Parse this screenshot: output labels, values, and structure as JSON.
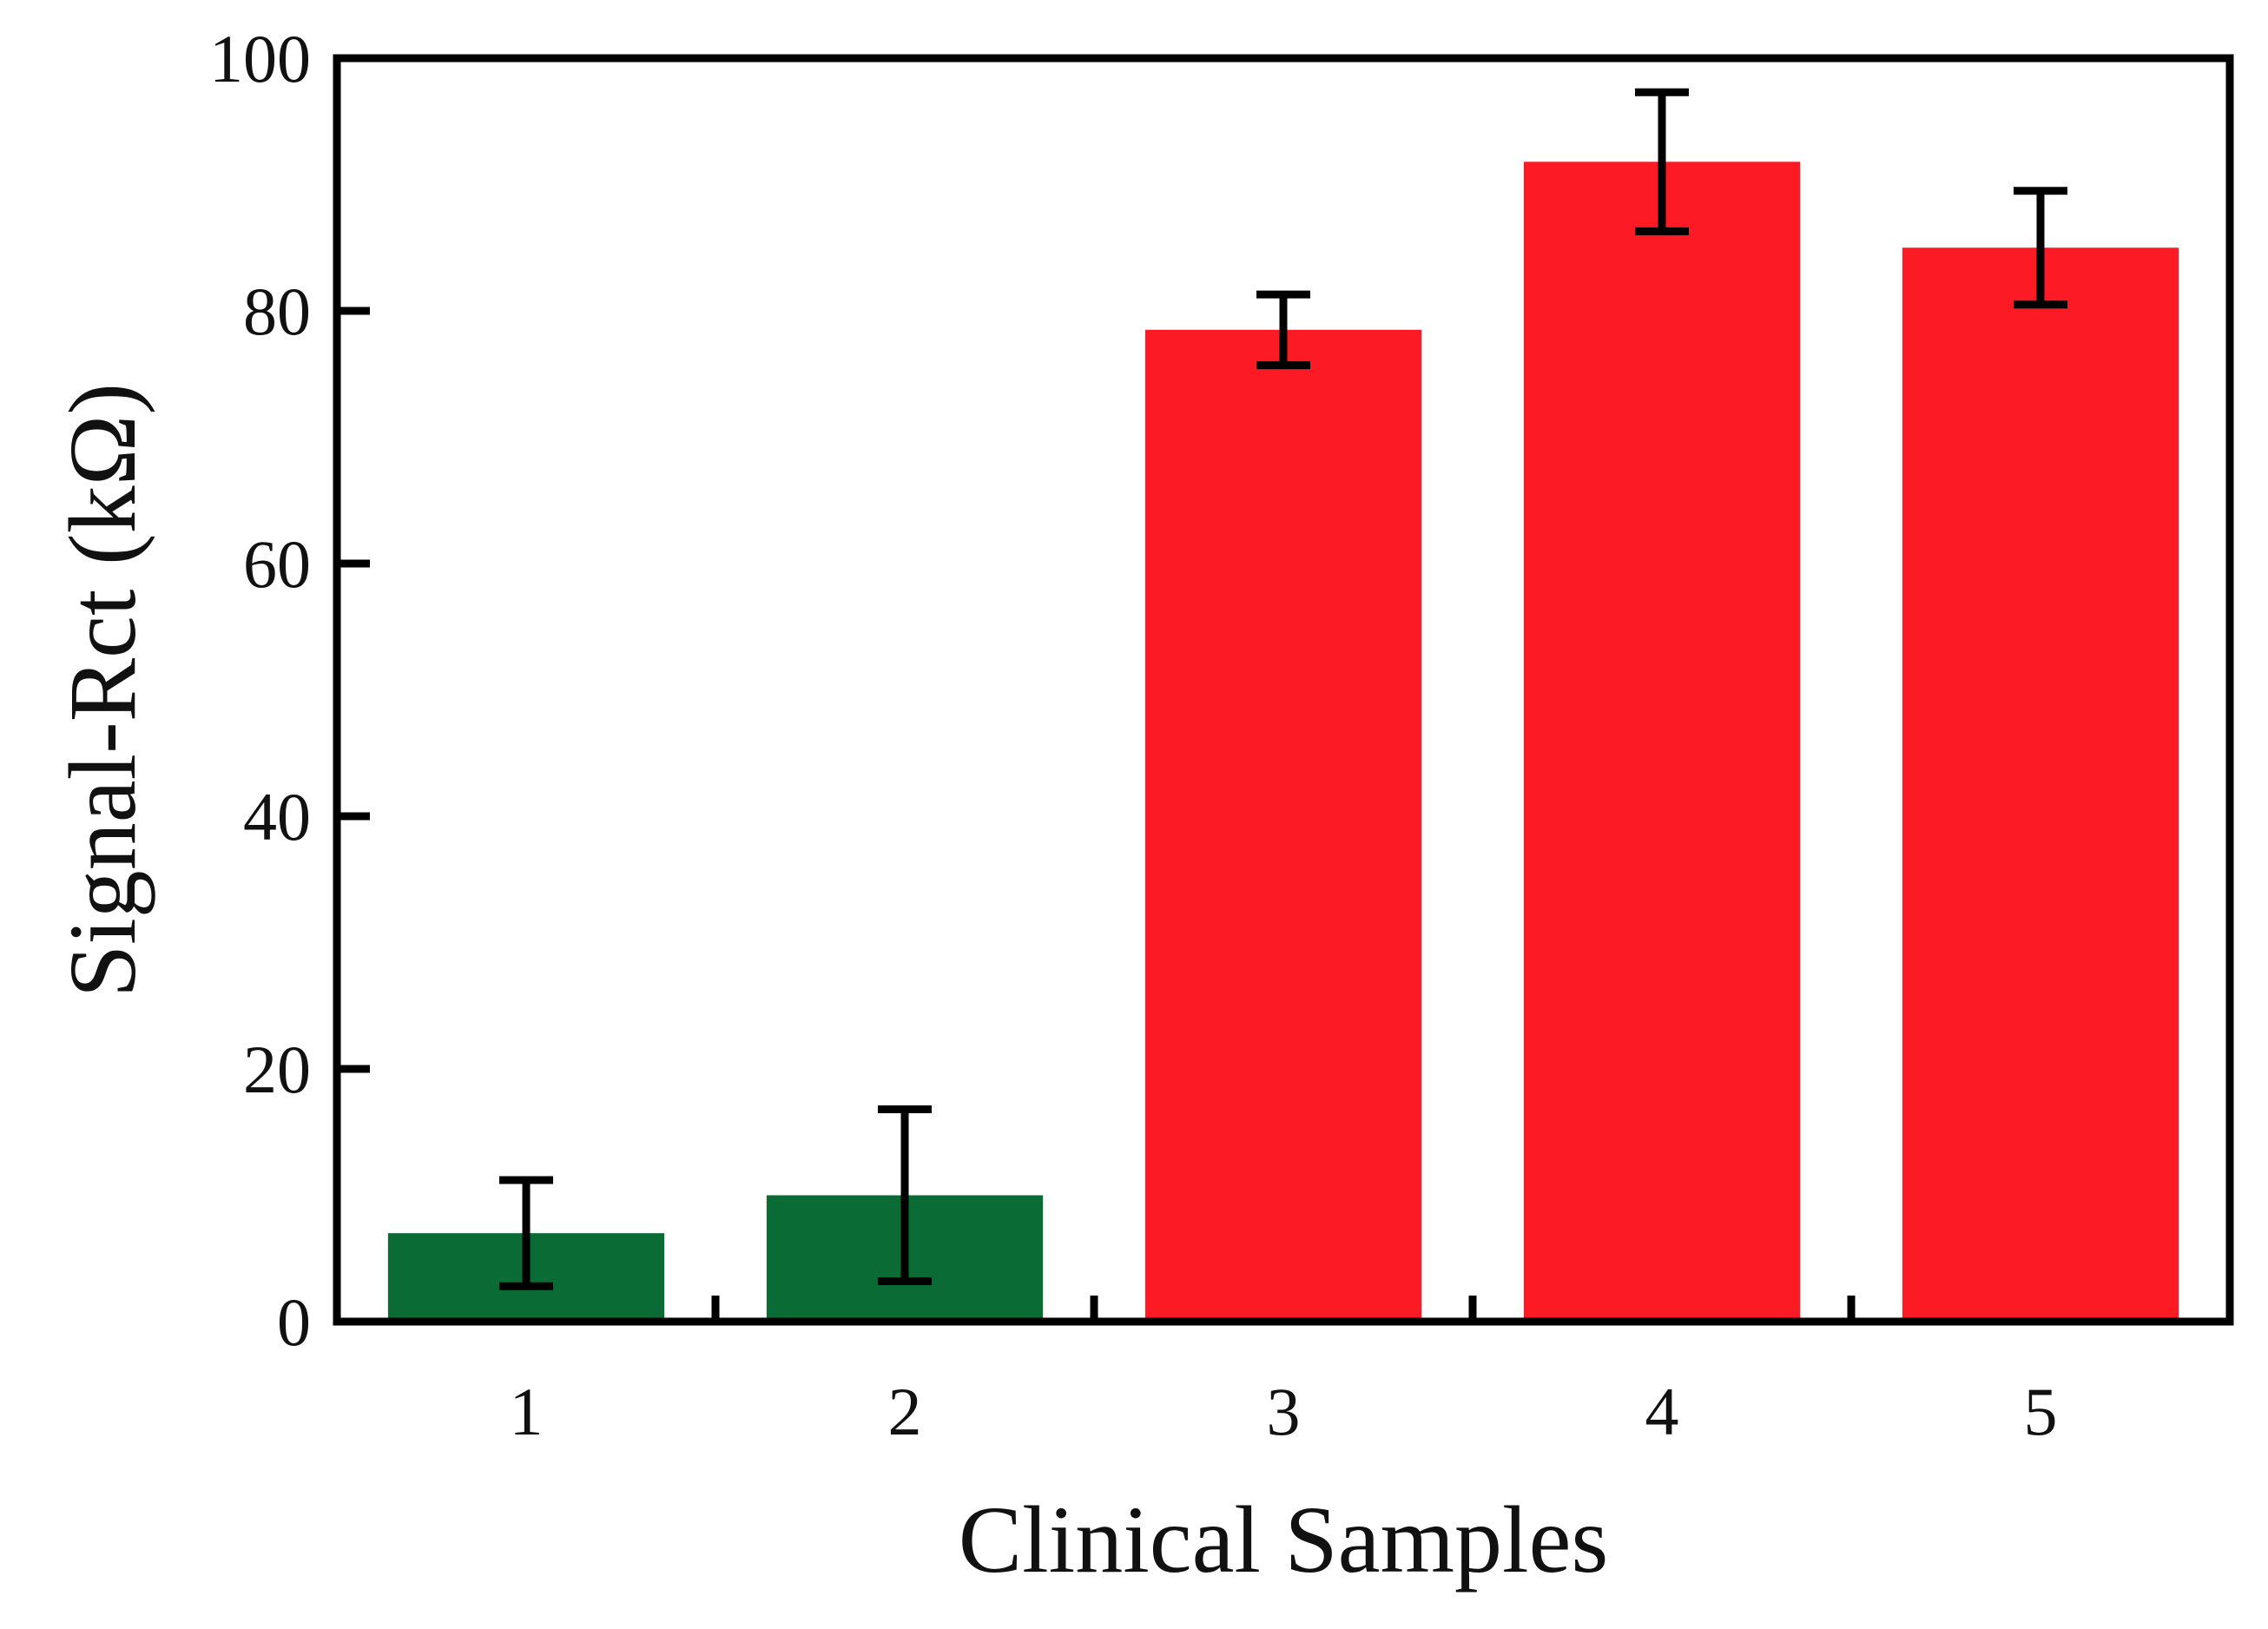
{
  "chart_data": {
    "type": "bar",
    "title": "",
    "xlabel": "Clinical Samples",
    "ylabel": "Signal-Rct (kΩ)",
    "categories": [
      "1",
      "2",
      "3",
      "4",
      "5"
    ],
    "values": [
      7,
      10,
      78.5,
      91.8,
      85
    ],
    "errors": [
      4.2,
      6.8,
      2.8,
      5.5,
      4.5
    ],
    "colors": [
      "#0b6b35",
      "#0b6b35",
      "#fc1a25",
      "#fc1a25",
      "#fc1a25"
    ],
    "ylim": [
      0,
      100
    ],
    "yticks": [
      "0",
      "20",
      "40",
      "60",
      "80",
      "100"
    ],
    "grid": false,
    "legend": "none"
  }
}
